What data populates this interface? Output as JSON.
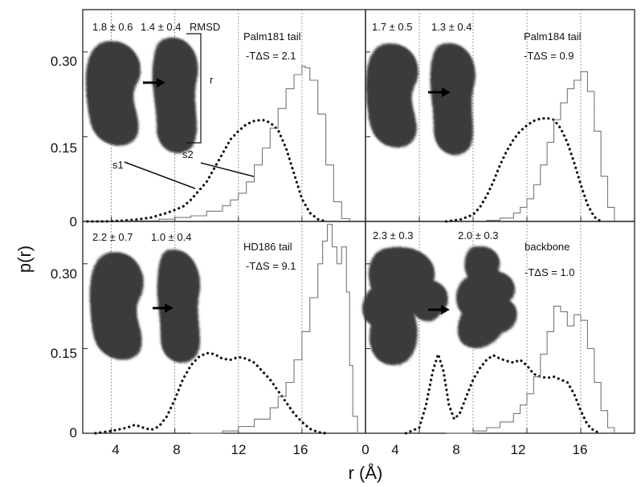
{
  "figure": {
    "ylabel": "p(r)",
    "xlabel": "r (Å)"
  },
  "chart_data": {
    "type": "line",
    "xlabel": "r (Å)",
    "ylabel": "p(r)",
    "grid": false,
    "x_ticks": [
      {
        "value": 4,
        "label": "4"
      },
      {
        "value": 8,
        "label": "8"
      },
      {
        "value": 12,
        "label": "12"
      },
      {
        "value": 16,
        "label": "16"
      }
    ],
    "x_origin_label": "0",
    "y_ticks": [
      {
        "value": 0,
        "label": "0"
      },
      {
        "value": 0.15,
        "label": "0.15"
      },
      {
        "value": 0.3,
        "label": "0.30"
      }
    ],
    "panels": [
      {
        "id": "palm181",
        "name": "Palm181 tail",
        "entropy_label": "-TΔS = 2.1",
        "rmsd": [
          "1.8 ± 0.6",
          "1.4 ± 0.4"
        ],
        "rmsd_label": "RMSD",
        "r_label": "r",
        "callouts": [
          "s1",
          "s2"
        ],
        "xlim": [
          2.2,
          20
        ],
        "ylim": [
          0,
          0.375
        ],
        "vlines": [
          4,
          8,
          12,
          16
        ],
        "series": [
          {
            "style": "dotted",
            "x": [
              2.5,
              3.5,
              4.5,
              5.5,
              6.5,
              7.5,
              8.5,
              9,
              10,
              10.5,
              11,
              11.5,
              12,
              12.5,
              13,
              13.5,
              14,
              14.5,
              15,
              15.5,
              16,
              16.5,
              17,
              17.5
            ],
            "y": [
              0,
              0,
              0.001,
              0.003,
              0.007,
              0.015,
              0.026,
              0.038,
              0.07,
              0.095,
              0.12,
              0.145,
              0.16,
              0.172,
              0.178,
              0.18,
              0.175,
              0.162,
              0.13,
              0.085,
              0.04,
              0.015,
              0.004,
              0
            ]
          },
          {
            "style": "step",
            "x": [
              3,
              5,
              7,
              8,
              9,
              10,
              11,
              11.5,
              12,
              12.5,
              13,
              13.5,
              14,
              14.5,
              15,
              15.5,
              16,
              16.2,
              16.5,
              17,
              17.5,
              18,
              18.5,
              19
            ],
            "y": [
              0,
              0.001,
              0.004,
              0.007,
              0.01,
              0.018,
              0.028,
              0.038,
              0.05,
              0.07,
              0.1,
              0.13,
              0.165,
              0.2,
              0.235,
              0.26,
              0.275,
              0.272,
              0.25,
              0.19,
              0.1,
              0.035,
              0.005,
              0
            ]
          }
        ]
      },
      {
        "id": "palm184",
        "name": "Palm184 tail",
        "entropy_label": "-TΔS = 0.9",
        "rmsd": [
          "1.7 ± 0.5",
          "1.3 ± 0.4"
        ],
        "xlim": [
          0,
          20
        ],
        "ylim": [
          0,
          0.375
        ],
        "vlines": [
          4,
          8,
          12,
          16
        ],
        "series": [
          {
            "style": "dotted",
            "x": [
              6,
              7,
              8,
              8.5,
              9,
              9.5,
              10,
              10.5,
              11,
              11.5,
              12,
              12.5,
              13,
              13.5,
              14,
              14.5,
              15,
              15.5,
              16,
              16.5,
              17,
              17.5
            ],
            "y": [
              0,
              0.003,
              0.012,
              0.025,
              0.045,
              0.07,
              0.1,
              0.125,
              0.145,
              0.16,
              0.17,
              0.178,
              0.182,
              0.183,
              0.18,
              0.165,
              0.14,
              0.105,
              0.065,
              0.03,
              0.008,
              0
            ]
          },
          {
            "style": "step",
            "x": [
              7,
              9,
              10,
              11,
              11.5,
              12,
              12.5,
              13,
              13.5,
              14,
              14.5,
              15,
              15.5,
              16,
              16.5,
              17,
              17.5,
              18,
              18.5
            ],
            "y": [
              0,
              0.002,
              0.006,
              0.015,
              0.025,
              0.04,
              0.065,
              0.1,
              0.14,
              0.18,
              0.21,
              0.235,
              0.25,
              0.265,
              0.23,
              0.16,
              0.08,
              0.025,
              0
            ]
          }
        ]
      },
      {
        "id": "hd186",
        "name": "HD186 tail",
        "entropy_label": "-TΔS = 9.1",
        "rmsd": [
          "2.2 ± 0.7",
          "1.0 ± 0.4"
        ],
        "xlim": [
          2.2,
          20
        ],
        "ylim": [
          0,
          0.375
        ],
        "vlines": [
          4,
          8,
          12,
          16
        ],
        "series": [
          {
            "style": "dotted",
            "x": [
              3,
              4,
              5,
              5.5,
              6,
              6.5,
              7,
              7.5,
              8,
              8.5,
              9,
              9.5,
              10,
              10.5,
              11,
              11.5,
              12,
              12.5,
              13,
              13.5,
              14,
              14.5,
              15,
              15.5,
              16,
              16.5,
              17,
              17.5
            ],
            "y": [
              0,
              0.004,
              0.01,
              0.015,
              0.01,
              0.006,
              0.012,
              0.03,
              0.06,
              0.095,
              0.12,
              0.135,
              0.142,
              0.14,
              0.132,
              0.13,
              0.135,
              0.132,
              0.125,
              0.11,
              0.095,
              0.075,
              0.055,
              0.035,
              0.02,
              0.008,
              0.002,
              0
            ]
          },
          {
            "style": "step",
            "x": [
              9,
              11,
              12,
              13,
              14,
              14.5,
              15,
              15.5,
              16,
              16.5,
              17,
              17.3,
              17.6,
              17.9,
              18.2,
              18.5,
              18.8,
              19,
              19.2,
              19.5
            ],
            "y": [
              0,
              0.004,
              0.012,
              0.025,
              0.045,
              0.065,
              0.09,
              0.13,
              0.18,
              0.24,
              0.3,
              0.34,
              0.37,
              0.33,
              0.3,
              0.33,
              0.25,
              0.12,
              0.03,
              0
            ]
          }
        ]
      },
      {
        "id": "backbone",
        "name": "backbone",
        "entropy_label": "-TΔS = 1.0",
        "rmsd": [
          "2.3 ± 0.3",
          "2.0 ± 0.3"
        ],
        "xlim": [
          0,
          20
        ],
        "ylim": [
          0,
          0.375
        ],
        "vlines": [
          4,
          8,
          12,
          16
        ],
        "series": [
          {
            "style": "dotted",
            "x": [
              3,
              4,
              4.5,
              5,
              5.4,
              5.8,
              6.2,
              6.6,
              7,
              7.5,
              8,
              8.5,
              9,
              9.5,
              10,
              10.5,
              11,
              11.5,
              12,
              12.5,
              13,
              13.5,
              14,
              14.5,
              15,
              15.5,
              16,
              16.5,
              17,
              17.5
            ],
            "y": [
              0,
              0.01,
              0.05,
              0.11,
              0.14,
              0.11,
              0.05,
              0.025,
              0.035,
              0.065,
              0.095,
              0.115,
              0.13,
              0.138,
              0.132,
              0.128,
              0.125,
              0.13,
              0.12,
              0.105,
              0.1,
              0.098,
              0.1,
              0.095,
              0.09,
              0.07,
              0.04,
              0.015,
              0.004,
              0
            ]
          },
          {
            "style": "step",
            "x": [
              6,
              8,
              9,
              10,
              11,
              11.5,
              12,
              12.5,
              13,
              13.5,
              14,
              14.5,
              15,
              15.5,
              16,
              16.5,
              17,
              17.5,
              18,
              18.5
            ],
            "y": [
              0,
              0.004,
              0.01,
              0.02,
              0.035,
              0.05,
              0.07,
              0.1,
              0.14,
              0.18,
              0.225,
              0.215,
              0.19,
              0.21,
              0.2,
              0.15,
              0.09,
              0.04,
              0.01,
              0
            ]
          }
        ]
      }
    ]
  }
}
